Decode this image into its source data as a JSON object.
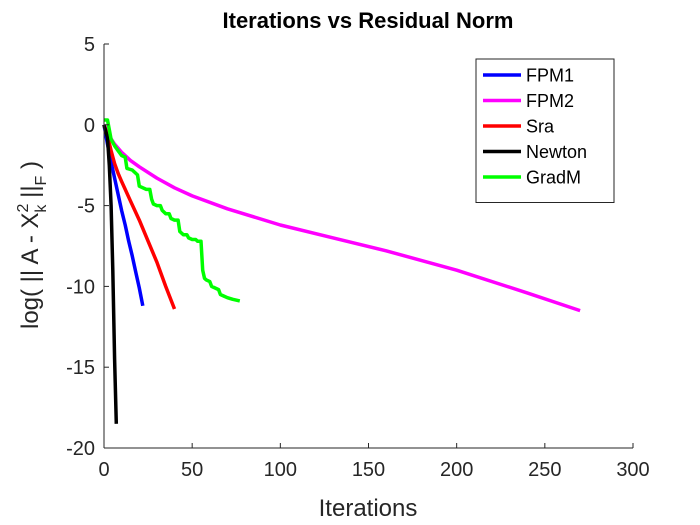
{
  "chart_data": {
    "type": "line",
    "title": "Iterations vs Residual Norm",
    "xlabel": "Iterations",
    "ylabel": {
      "prefix": "log( || A - X",
      "sup": "2",
      "sub": "k",
      "mid": " ||",
      "sub2": "F",
      "suffix": " )"
    },
    "xlim": [
      0,
      300
    ],
    "ylim": [
      -20,
      5
    ],
    "xticks": [
      0,
      50,
      100,
      150,
      200,
      250,
      300
    ],
    "yticks": [
      5,
      0,
      -5,
      -10,
      -15,
      -20
    ],
    "grid": false,
    "legend_position": "top-right",
    "series": [
      {
        "name": "FPM1",
        "color": "#0000ff",
        "points": [
          [
            0,
            0.0
          ],
          [
            2,
            -1.2
          ],
          [
            4,
            -2.3
          ],
          [
            6,
            -3.3
          ],
          [
            8,
            -4.3
          ],
          [
            10,
            -5.3
          ],
          [
            12,
            -6.2
          ],
          [
            14,
            -7.2
          ],
          [
            16,
            -8.1
          ],
          [
            18,
            -9.1
          ],
          [
            20,
            -10.1
          ],
          [
            22,
            -11.2
          ]
        ]
      },
      {
        "name": "FPM2",
        "color": "#ff00ff",
        "points": [
          [
            0,
            0.0
          ],
          [
            3,
            -0.7
          ],
          [
            6,
            -1.2
          ],
          [
            10,
            -1.7
          ],
          [
            15,
            -2.2
          ],
          [
            20,
            -2.6
          ],
          [
            30,
            -3.3
          ],
          [
            40,
            -3.9
          ],
          [
            50,
            -4.4
          ],
          [
            70,
            -5.2
          ],
          [
            100,
            -6.2
          ],
          [
            130,
            -7.0
          ],
          [
            160,
            -7.8
          ],
          [
            200,
            -9.0
          ],
          [
            240,
            -10.4
          ],
          [
            270,
            -11.5
          ]
        ]
      },
      {
        "name": "Sra",
        "color": "#ff0000",
        "points": [
          [
            0,
            0.0
          ],
          [
            2,
            -0.7
          ],
          [
            4,
            -1.6
          ],
          [
            6,
            -2.4
          ],
          [
            8,
            -3.0
          ],
          [
            10,
            -3.5
          ],
          [
            15,
            -4.7
          ],
          [
            20,
            -5.9
          ],
          [
            25,
            -7.2
          ],
          [
            30,
            -8.5
          ],
          [
            35,
            -10.0
          ],
          [
            40,
            -11.4
          ]
        ]
      },
      {
        "name": "Newton",
        "color": "#000000",
        "points": [
          [
            0,
            0.0
          ],
          [
            2,
            -0.8
          ],
          [
            3,
            -2.5
          ],
          [
            4,
            -5.0
          ],
          [
            5,
            -9.0
          ],
          [
            6,
            -14.5
          ],
          [
            7,
            -18.5
          ]
        ]
      },
      {
        "name": "GradM",
        "color": "#00ff00",
        "points": [
          [
            0,
            0.3
          ],
          [
            2,
            0.3
          ],
          [
            3,
            -0.3
          ],
          [
            4,
            -0.9
          ],
          [
            6,
            -1.3
          ],
          [
            8,
            -1.6
          ],
          [
            10,
            -1.9
          ],
          [
            12,
            -2.0
          ],
          [
            13,
            -2.7
          ],
          [
            16,
            -2.8
          ],
          [
            19,
            -3.1
          ],
          [
            20,
            -3.8
          ],
          [
            24,
            -4.0
          ],
          [
            26,
            -4.0
          ],
          [
            27,
            -4.6
          ],
          [
            28,
            -4.9
          ],
          [
            30,
            -5.0
          ],
          [
            32,
            -5.0
          ],
          [
            33,
            -5.3
          ],
          [
            35,
            -5.5
          ],
          [
            37,
            -5.5
          ],
          [
            38,
            -5.8
          ],
          [
            40,
            -5.9
          ],
          [
            42,
            -5.9
          ],
          [
            43,
            -6.6
          ],
          [
            45,
            -6.8
          ],
          [
            47,
            -6.8
          ],
          [
            48,
            -7.0
          ],
          [
            50,
            -7.1
          ],
          [
            52,
            -7.1
          ],
          [
            53,
            -7.2
          ],
          [
            55,
            -7.2
          ],
          [
            56,
            -9.0
          ],
          [
            57,
            -9.5
          ],
          [
            58,
            -9.6
          ],
          [
            60,
            -9.7
          ],
          [
            61,
            -10.0
          ],
          [
            63,
            -10.1
          ],
          [
            65,
            -10.2
          ],
          [
            66,
            -10.5
          ],
          [
            68,
            -10.6
          ],
          [
            70,
            -10.7
          ],
          [
            73,
            -10.8
          ],
          [
            77,
            -10.9
          ]
        ]
      }
    ]
  }
}
